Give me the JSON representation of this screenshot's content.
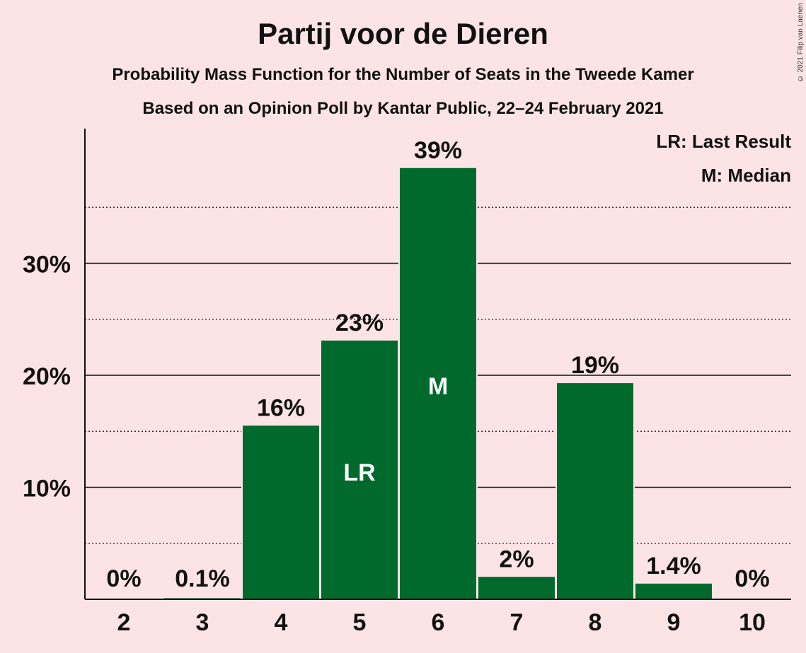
{
  "header": {
    "title": "Partij voor de Dieren",
    "subtitle1": "Probability Mass Function for the Number of Seats in the Tweede Kamer",
    "subtitle2": "Based on an Opinion Poll by Kantar Public, 22–24 February 2021",
    "copyright": "© 2021 Filip van Laenen"
  },
  "legend": {
    "lr": "LR: Last Result",
    "m": "M: Median"
  },
  "colors": {
    "background": "#fce4e6",
    "bar": "#006a2d",
    "text": "#111111"
  },
  "chart_data": {
    "type": "bar",
    "title": "Partij voor de Dieren",
    "categories": [
      "2",
      "3",
      "4",
      "5",
      "6",
      "7",
      "8",
      "9",
      "10"
    ],
    "values": [
      0,
      0.1,
      15.5,
      23.1,
      38.5,
      2.0,
      19.3,
      1.4,
      0
    ],
    "data_labels": [
      "0%",
      "0.1%",
      "16%",
      "23%",
      "39%",
      "2%",
      "19%",
      "1.4%",
      "0%"
    ],
    "bar_markers": {
      "5": "LR",
      "6": "M"
    },
    "y_ticks": [
      10,
      20,
      30
    ],
    "y_tick_labels": [
      "10%",
      "20%",
      "30%"
    ],
    "y_minor_ticks": [
      5,
      15,
      25,
      35
    ],
    "ylim": [
      0,
      42
    ],
    "grid": true,
    "legend_position": "top-right"
  }
}
